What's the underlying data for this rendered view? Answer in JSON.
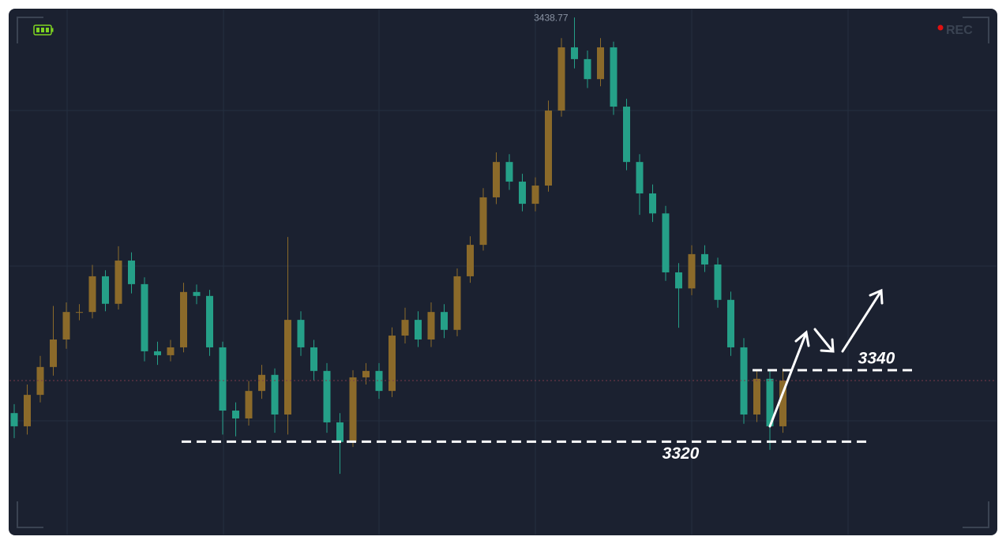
{
  "chart_data": {
    "type": "candlestick",
    "up_color": "#8b6a2a",
    "down_color": "#25a088",
    "ylim": [
      3294,
      3441
    ],
    "open": [
      3328.0,
      3324.3,
      3333.1,
      3340.9,
      3348.6,
      3356.3,
      3356.3,
      3366.3,
      3358.6,
      3370.7,
      3364.1,
      3345.3,
      3344.2,
      3346.4,
      3361.9,
      3360.8,
      3346.4,
      3328.7,
      3326.5,
      3334.2,
      3338.7,
      3327.6,
      3354.1,
      3346.4,
      3339.8,
      3325.4,
      3319.9,
      3338.0,
      3339.8,
      3334.2,
      3349.7,
      3354.1,
      3348.6,
      3356.3,
      3351.3,
      3366.3,
      3375.1,
      3388.4,
      3398.3,
      3392.8,
      3386.6,
      3391.7,
      3412.7,
      3430.4,
      3427.1,
      3421.5,
      3430.4,
      3413.8,
      3398.3,
      3389.5,
      3383.9,
      3367.4,
      3362.9,
      3372.5,
      3369.6,
      3359.7,
      3346.4,
      3327.6,
      3337.6,
      3324.3
    ],
    "high": [
      3330.5,
      3336.0,
      3344.0,
      3358.0,
      3359.0,
      3358.5,
      3369.5,
      3368.0,
      3374.7,
      3373.0,
      3366.0,
      3348.0,
      3348.5,
      3364.5,
      3364.0,
      3362.5,
      3348.0,
      3331.0,
      3337.0,
      3341.5,
      3340.5,
      3377.3,
      3356.5,
      3348.5,
      3342.0,
      3328.0,
      3340.0,
      3342.0,
      3342.0,
      3352.0,
      3357.5,
      3356.5,
      3359.0,
      3358.5,
      3368.5,
      3377.5,
      3391.0,
      3401.0,
      3400.5,
      3395.0,
      3394.0,
      3415.5,
      3433.0,
      3438.77,
      3429.5,
      3433.0,
      3432.0,
      3416.0,
      3400.5,
      3392.0,
      3386.0,
      3370.0,
      3375.0,
      3375.0,
      3371.5,
      3362.0,
      3349.0,
      3340.0,
      3340.0,
      3340.5
    ],
    "low": [
      3321.0,
      3322.0,
      3331.0,
      3338.5,
      3346.0,
      3354.0,
      3354.5,
      3356.5,
      3357.0,
      3361.5,
      3342.5,
      3341.5,
      3342.5,
      3345.0,
      3358.5,
      3344.0,
      3322.0,
      3321.5,
      3324.5,
      3332.0,
      3322.5,
      3322.0,
      3344.0,
      3337.0,
      3322.5,
      3311.0,
      3318.5,
      3336.0,
      3332.0,
      3332.5,
      3347.5,
      3346.5,
      3346.5,
      3349.0,
      3349.5,
      3364.5,
      3373.5,
      3386.5,
      3390.5,
      3384.5,
      3384.5,
      3390.0,
      3411.0,
      3424.5,
      3419.0,
      3419.5,
      3411.5,
      3396.0,
      3383.5,
      3381.5,
      3365.0,
      3351.9,
      3361.0,
      3367.5,
      3357.5,
      3344.0,
      3325.0,
      3325.5,
      3317.7,
      3322.5
    ],
    "close": [
      3324.3,
      3333.1,
      3340.9,
      3348.6,
      3356.3,
      3356.3,
      3366.3,
      3358.6,
      3370.7,
      3364.1,
      3345.3,
      3344.2,
      3346.4,
      3361.9,
      3360.8,
      3346.4,
      3328.7,
      3326.5,
      3334.2,
      3338.7,
      3327.6,
      3354.1,
      3346.4,
      3339.8,
      3325.4,
      3319.9,
      3338.0,
      3339.8,
      3334.2,
      3349.7,
      3354.1,
      3348.6,
      3356.3,
      3351.3,
      3366.3,
      3375.1,
      3388.4,
      3398.3,
      3392.8,
      3386.6,
      3391.7,
      3412.7,
      3430.4,
      3427.1,
      3421.5,
      3430.4,
      3413.8,
      3398.3,
      3389.5,
      3383.9,
      3367.4,
      3362.9,
      3372.5,
      3369.6,
      3359.7,
      3346.4,
      3327.6,
      3337.6,
      3324.3,
      3337.1
    ],
    "levels": [
      3340,
      3320
    ]
  },
  "recording_label": "REC"
}
